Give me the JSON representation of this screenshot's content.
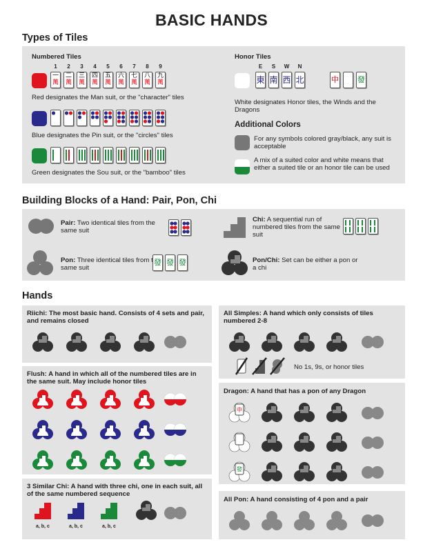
{
  "page": {
    "title": "BASIC HANDS"
  },
  "types": {
    "heading": "Types of Tiles",
    "numbered_title": "Numbered Tiles",
    "numbers": [
      "1",
      "2",
      "3",
      "4",
      "5",
      "6",
      "7",
      "8",
      "9"
    ],
    "man_caption": "Red designates the Man suit, or the \"character\" tiles",
    "pin_caption": "Blue designates the Pin suit, or the \"circles\" tiles",
    "sou_caption": "Green designates the Sou suit, or the \"bamboo\" tiles",
    "honor_title": "Honor Tiles",
    "winds": [
      "E",
      "S",
      "W",
      "N"
    ],
    "honor_caption": "White designates Honor tiles, the Winds and the Dragons",
    "additional_title": "Additional Colors",
    "gray_caption": "For any symbols colored gray/black, any suit is acceptable",
    "mix_caption": "A mix of a suited color and white means that either a suited tile or an honor tile can be used",
    "colors": {
      "man": "#e0141e",
      "pin": "#2a2a8c",
      "sou": "#1a8a3a",
      "gray": "#777777"
    }
  },
  "blocks": {
    "heading": "Building Blocks of a Hand: Pair, Pon, Chi",
    "pair_bold": "Pair:",
    "pair_text": " Two identical tiles from the same suit",
    "pon_bold": "Pon:",
    "pon_text": " Three identical tiles from the same suit",
    "chi_bold": "Chi:",
    "chi_text": " A sequential run of numbered tiles from the same suit",
    "ponchi_bold": "Pon/Chi:",
    "ponchi_text": " Set can be either a pon or a chi"
  },
  "hands": {
    "heading": "Hands",
    "riichi_bold": "Riichi:",
    "riichi_text": " The most basic hand. Consists of 4 sets and pair, and remains closed",
    "flush_bold": "Flush:",
    "flush_text": " A hand in which all of the numbered tiles are in the same suit. May include honor tiles",
    "similar_bold": "3 Similar Chi:",
    "similar_text": " A hand with three chi, one in each suit, all of the same numbered sequence",
    "abc": "a, b, c",
    "simples_bold": "All Simples:",
    "simples_text": " A hand which only consists of tiles numbered 2-8",
    "simples_note": "No 1s, 9s, or honor tiles",
    "dragon_bold": "Dragon:",
    "dragon_text": " A hand that has a pon of any Dragon",
    "allpon_bold": "All Pon:",
    "allpon_text": " A hand consisting of 4 pon and a pair"
  }
}
